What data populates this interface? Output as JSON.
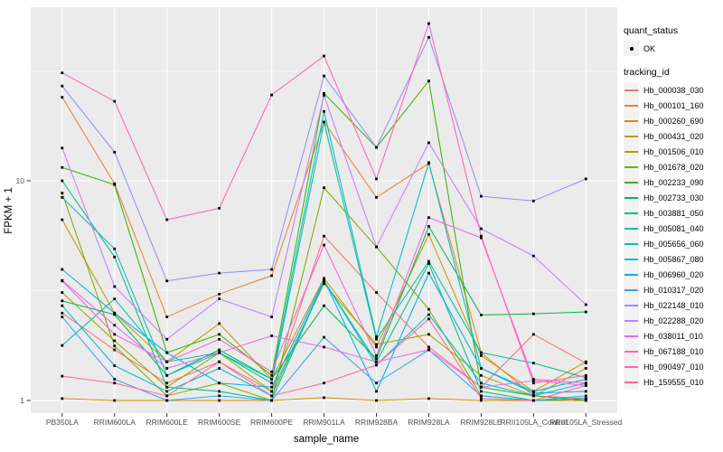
{
  "legend": {
    "quant_status_title": "quant_status",
    "quant_status_items": [
      {
        "label": "OK"
      }
    ],
    "tracking_title": "tracking_id"
  },
  "chart_data": {
    "type": "line",
    "title": "",
    "xlabel": "sample_name",
    "ylabel": "FPKM + 1",
    "y_scale": "log10",
    "ylim": [
      0.88,
      62
    ],
    "grid": true,
    "legend_position": "right",
    "panel_bg": "#EBEBEB",
    "grid_color": "#FFFFFF",
    "tick_color": "#333333",
    "tick_text_color": "#4D4D4D",
    "point_color": "#000000",
    "point_shape": "square",
    "y_ticks": [
      {
        "label": "10",
        "value": 10
      },
      {
        "label": "1",
        "value": 1
      }
    ],
    "y_minor_ticks": [
      31.62,
      3.162
    ],
    "categories": [
      "PB350LA",
      "RRIM600LA",
      "RRIM600LE",
      "RRIM600SE",
      "RRIM600PE",
      "RRIM901LA",
      "RRIM928BA",
      "RRIM928LA",
      "RRIM928LE",
      "RRII105LA_Control",
      "RRII105LA_Stressed"
    ],
    "series": [
      {
        "name": "Hb_000038_030",
        "color": "#F8766D",
        "values": [
          2.5,
          1.7,
          1.2,
          1.5,
          1.1,
          5.6,
          3.1,
          1.75,
          1.15,
          2.0,
          1.48
        ]
      },
      {
        "name": "Hb_000101_160",
        "color": "#EA8331",
        "values": [
          24,
          9.7,
          2.4,
          3.05,
          3.7,
          18.5,
          8.4,
          12.0,
          1.65,
          1.05,
          1.02
        ]
      },
      {
        "name": "Hb_000260_690",
        "color": "#D89000",
        "values": [
          1.02,
          1.0,
          1.0,
          1.0,
          1.0,
          1.03,
          1.0,
          1.02,
          1.0,
          1.0,
          1.0
        ]
      },
      {
        "name": "Hb_000431_020",
        "color": "#C09B00",
        "values": [
          6.65,
          2.5,
          1.5,
          2.24,
          1.25,
          3.6,
          1.75,
          5.7,
          1.6,
          1.1,
          1.5
        ]
      },
      {
        "name": "Hb_001506_010",
        "color": "#A3A500",
        "values": [
          3.1,
          1.87,
          1.15,
          1.65,
          1.1,
          3.4,
          1.8,
          2.0,
          1.3,
          1.05,
          1.4
        ]
      },
      {
        "name": "Hb_001678_020",
        "color": "#7CAE00",
        "values": [
          8.8,
          1.77,
          1.05,
          1.2,
          1.0,
          9.3,
          5.0,
          2.6,
          1.05,
          1.0,
          1.02
        ]
      },
      {
        "name": "Hb_002233_090",
        "color": "#39B600",
        "values": [
          11.5,
          9.6,
          1.65,
          2.0,
          1.3,
          25,
          14.2,
          28.5,
          1.15,
          1.05,
          1.0
        ]
      },
      {
        "name": "Hb_002733_030",
        "color": "#00BB4E",
        "values": [
          2.84,
          2.46,
          1.3,
          1.7,
          1.25,
          2.7,
          1.55,
          6.2,
          2.45,
          2.48,
          2.53
        ]
      },
      {
        "name": "Hb_003881_050",
        "color": "#00C087",
        "values": [
          10.0,
          4.5,
          1.15,
          1.1,
          1.0,
          3.5,
          1.5,
          4.2,
          1.1,
          1.0,
          1.02
        ]
      },
      {
        "name": "Hb_005081_040",
        "color": "#00C1A3",
        "values": [
          1.78,
          2.9,
          1.5,
          1.65,
          1.2,
          18.5,
          1.9,
          4.3,
          1.65,
          1.48,
          1.27
        ]
      },
      {
        "name": "Hb_005656_060",
        "color": "#00BFC4",
        "values": [
          8.4,
          4.9,
          1.3,
          1.65,
          1.25,
          20.7,
          1.95,
          12.1,
          1.4,
          1.1,
          1.25
        ]
      },
      {
        "name": "Hb_005867_080",
        "color": "#00BAE0",
        "values": [
          2.7,
          1.44,
          1.1,
          1.4,
          1.05,
          3.5,
          1.45,
          2.46,
          1.2,
          1.05,
          1.2
        ]
      },
      {
        "name": "Hb_006960_020",
        "color": "#00B0F6",
        "values": [
          3.95,
          2.5,
          1.65,
          1.2,
          1.15,
          3.55,
          1.1,
          3.8,
          1.4,
          1.08,
          1.1
        ]
      },
      {
        "name": "Hb_010317_020",
        "color": "#35A2FF",
        "values": [
          2.4,
          1.25,
          1.0,
          1.05,
          1.0,
          1.94,
          1.2,
          1.7,
          1.05,
          1.0,
          1.05
        ]
      },
      {
        "name": "Hb_022148_010",
        "color": "#9590FF",
        "values": [
          27,
          13.5,
          3.5,
          3.8,
          3.95,
          30,
          14.2,
          45,
          8.5,
          8.1,
          10.2
        ]
      },
      {
        "name": "Hb_022288_020",
        "color": "#C77CFF",
        "values": [
          14.1,
          3.3,
          1.9,
          2.9,
          2.4,
          24.5,
          5.0,
          14.9,
          6.05,
          4.55,
          2.73
        ]
      },
      {
        "name": "Hb_038011_010",
        "color": "#E76BF3",
        "values": [
          3.52,
          2.2,
          1.4,
          1.65,
          1.97,
          1.75,
          1.5,
          1.7,
          1.15,
          1.23,
          1.17
        ]
      },
      {
        "name": "Hb_067188_010",
        "color": "#FA62DB",
        "values": [
          3.5,
          2.0,
          1.5,
          1.9,
          1.35,
          5.1,
          1.6,
          6.8,
          5.5,
          1.25,
          1.2
        ]
      },
      {
        "name": "Hb_090497_010",
        "color": "#FF62BC",
        "values": [
          31,
          23,
          6.65,
          7.5,
          24.6,
          37,
          10.2,
          52,
          5.6,
          1.2,
          1.3
        ]
      },
      {
        "name": "Hb_159555_010",
        "color": "#FF6A98",
        "values": [
          1.29,
          1.2,
          1.05,
          1.5,
          1.05,
          1.2,
          1.45,
          2.35,
          1.02,
          1.0,
          1.17
        ]
      }
    ]
  }
}
